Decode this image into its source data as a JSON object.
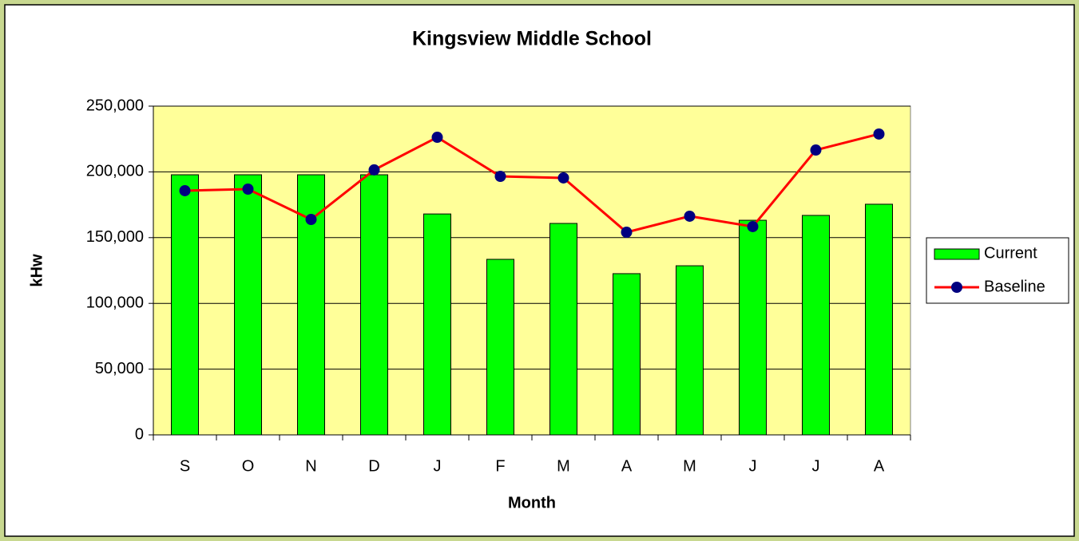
{
  "chart_data": {
    "type": "bar",
    "title": "Kingsview Middle School",
    "x_label": "Month",
    "y_label": "kHw",
    "categories": [
      "S",
      "O",
      "N",
      "D",
      "J",
      "F",
      "M",
      "A",
      "M",
      "J",
      "J",
      "A"
    ],
    "series": [
      {
        "name": "Current",
        "type": "bar",
        "color": "#00ff00",
        "values": [
          197800,
          197800,
          197800,
          197800,
          168000,
          133500,
          160800,
          122600,
          128600,
          163200,
          166900,
          175400
        ]
      },
      {
        "name": "Baseline",
        "type": "line",
        "color": "#ff0000",
        "marker_color": "#000080",
        "values": [
          185700,
          186900,
          163800,
          201500,
          226300,
          196600,
          195400,
          154100,
          166300,
          158400,
          216600,
          228800
        ]
      }
    ],
    "ylim": [
      0,
      250000
    ],
    "yticks": [
      0,
      {
        "value": 50000,
        "label": "50,000"
      },
      {
        "value": 100000,
        "label": "100,000"
      },
      {
        "value": 150000,
        "label": "150,000"
      },
      {
        "value": 200000,
        "label": "200,000"
      },
      {
        "value": 250000,
        "label": "250,000"
      }
    ],
    "grid": true,
    "plot_background": "#ffff99",
    "legend": "right"
  }
}
